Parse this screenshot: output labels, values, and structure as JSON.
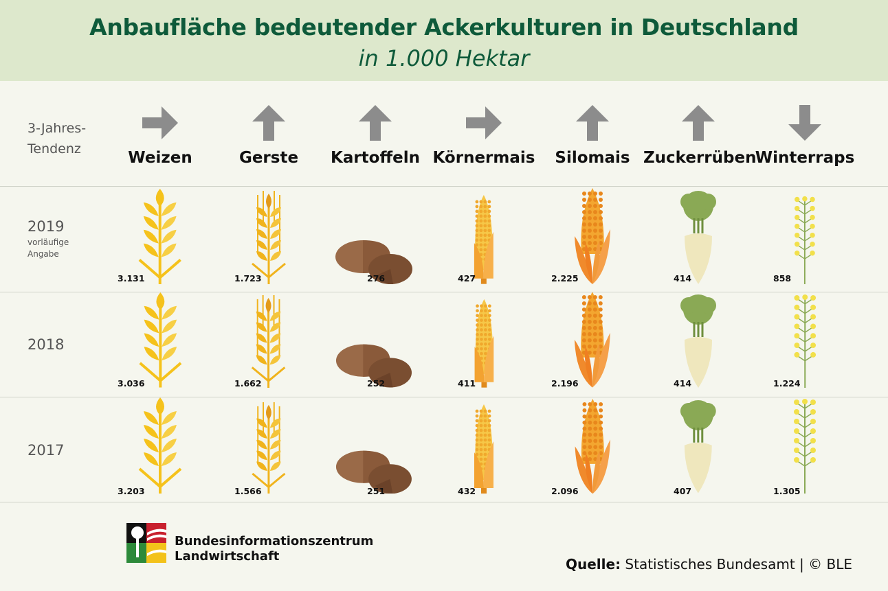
{
  "header": {
    "title": "Anbaufläche bedeutender Ackerkulturen in Deutschland",
    "subtitle": "in 1.000 Hektar"
  },
  "tendency_label_1": "3-Jahres-",
  "tendency_label_2": "Tendenz",
  "rows": [
    {
      "year": "2019",
      "note_1": "vorläufige",
      "note_2": "Angabe"
    },
    {
      "year": "2018",
      "note_1": "",
      "note_2": ""
    },
    {
      "year": "2017",
      "note_1": "",
      "note_2": ""
    }
  ],
  "footer": {
    "logo_line1": "Bundesinformationszentrum",
    "logo_line2": "Landwirtschaft",
    "source_label": "Quelle:",
    "source_text": " Statistisches Bundesamt | © BLE"
  },
  "colors": {
    "title": "#0e5a3a",
    "header_bg": "#dde8cc",
    "wheat": "#f5c21b",
    "barley": "#f0b31c",
    "potato": "#8a5a3a",
    "corn": "#f3a230",
    "silomais": "#f08a2c",
    "beet_leaf": "#8aa955",
    "beet_root": "#efe7bd",
    "rapeseed": "#f2e04a",
    "arrow": "#8c8c8c"
  },
  "chart_data": {
    "type": "table",
    "title": "Anbaufläche bedeutender Ackerkulturen in Deutschland",
    "subtitle": "in 1.000 Hektar",
    "unit": "1.000 Hektar",
    "categories": [
      "Weizen",
      "Gerste",
      "Kartoffeln",
      "Körnermais",
      "Silomais",
      "Zuckerrüben",
      "Winterraps"
    ],
    "tendency": [
      "right",
      "up",
      "up",
      "right",
      "up",
      "up",
      "down"
    ],
    "icons": [
      "wheat-icon",
      "barley-icon",
      "potato-icon",
      "corn-icon",
      "silage-corn-icon",
      "sugar-beet-icon",
      "rapeseed-icon"
    ],
    "series": [
      {
        "name": "2019",
        "values": [
          3131,
          1723,
          276,
          427,
          2225,
          414,
          858
        ],
        "labels": [
          "3.131",
          "1.723",
          "276",
          "427",
          "2.225",
          "414",
          "858"
        ]
      },
      {
        "name": "2018",
        "values": [
          3036,
          1662,
          252,
          411,
          2196,
          414,
          1224
        ],
        "labels": [
          "3.036",
          "1.662",
          "252",
          "411",
          "2.196",
          "414",
          "1.224"
        ]
      },
      {
        "name": "2017",
        "values": [
          3203,
          1566,
          251,
          432,
          2096,
          407,
          1305
        ],
        "labels": [
          "3.203",
          "1.566",
          "251",
          "432",
          "2.096",
          "407",
          "1.305"
        ]
      }
    ]
  }
}
